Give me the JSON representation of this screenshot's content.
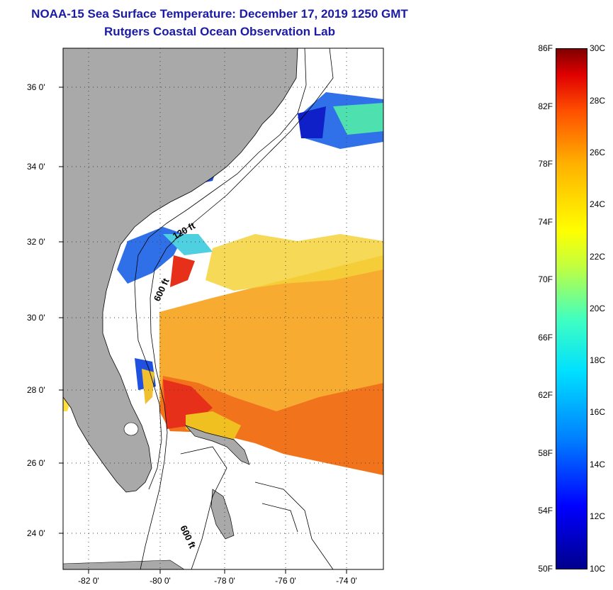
{
  "header": {
    "title": "NOAA-15 Sea Surface Temperature:  December 17, 2019 1250 GMT",
    "subtitle": "Rutgers Coastal Ocean Observation Lab"
  },
  "map": {
    "lat_labels": [
      "36 0'",
      "34 0'",
      "32 0'",
      "30 0'",
      "28 0'",
      "26 0'",
      "24 0'"
    ],
    "lon_labels": [
      "-82 0'",
      "-80 0'",
      "-78 0'",
      "-76 0'",
      "-74 0'"
    ],
    "isobaths": [
      "120 ft",
      "600 ft",
      "600 ft"
    ],
    "colors": {
      "land": "#a9a9a9",
      "ocean": "#ffffff",
      "title": "#1a1aa6"
    }
  },
  "colorbar": {
    "fahrenheit": [
      "86F",
      "82F",
      "78F",
      "74F",
      "70F",
      "66F",
      "62F",
      "58F",
      "54F",
      "50F"
    ],
    "celsius": [
      "30C",
      "28C",
      "26C",
      "24C",
      "22C",
      "20C",
      "18C",
      "16C",
      "14C",
      "12C",
      "10C"
    ]
  }
}
